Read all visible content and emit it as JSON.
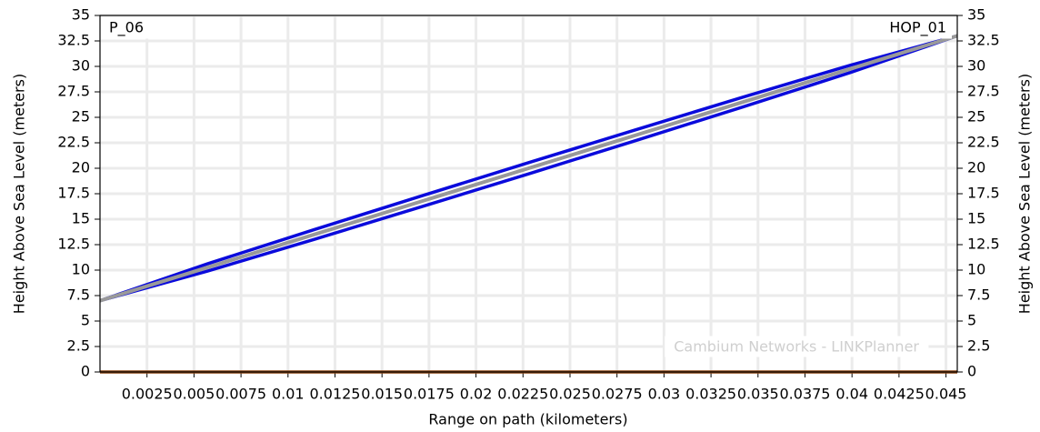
{
  "chart_data": {
    "type": "line",
    "xlabel": "Range on path (kilometers)",
    "ylabel": "Height Above Sea Level (meters)",
    "y2label": "Height Above Sea Level (meters)",
    "annotations": [
      "P_06",
      "HOP_01",
      "Cambium Networks - LINKPlanner"
    ],
    "x": [
      0,
      0.0057,
      0.0114,
      0.0171,
      0.0228,
      0.0285,
      0.0342,
      0.0399,
      0.0456
    ],
    "series": [
      {
        "color": "#0a0adc",
        "values": [
          7,
          10.61,
          13.98,
          17.28,
          20.55,
          23.78,
          26.98,
          30.11,
          33
        ]
      },
      {
        "color": "#0a0adc",
        "values": [
          7,
          9.89,
          13.02,
          16.22,
          19.45,
          22.72,
          26.02,
          29.39,
          33
        ]
      },
      {
        "color": "#999999",
        "values": [
          7,
          10.25,
          13.5,
          16.75,
          20,
          23.25,
          26.5,
          29.75,
          33
        ]
      },
      {
        "color": "#8b4513",
        "values": [
          0,
          0,
          0,
          0,
          0,
          0,
          0,
          0,
          0
        ]
      }
    ],
    "xlim": [
      0,
      0.0456
    ],
    "xticks": [
      0.0025,
      0.005,
      0.0075,
      0.01,
      0.0125,
      0.015,
      0.0175,
      0.02,
      0.0225,
      0.025,
      0.0275,
      0.03,
      0.0325,
      0.035,
      0.0375,
      0.04,
      0.0425,
      0.045
    ],
    "ylim": [
      0,
      35
    ],
    "yticks": [
      0,
      2.5,
      5,
      7.5,
      10,
      12.5,
      15,
      17.5,
      20,
      22.5,
      25,
      27.5,
      30,
      32.5,
      35
    ],
    "y2lim": [
      0,
      35
    ],
    "y2ticks": [
      0,
      2.5,
      5,
      7.5,
      10,
      12.5,
      15,
      17.5,
      20,
      22.5,
      25,
      27.5,
      30,
      32.5,
      35
    ],
    "grid": true
  }
}
